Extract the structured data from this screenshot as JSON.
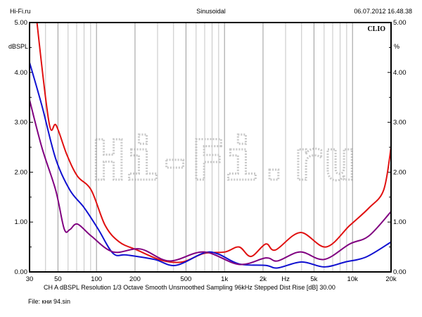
{
  "header": {
    "left": "Hi-Fi.ru",
    "center": "Sinusoidal",
    "right": "06.07.2012 16.48.38"
  },
  "brand": "CLIO",
  "watermark": "Hi-Fi.ru",
  "footer": {
    "settings": "CH A   dBSPL   Resolution 1/3 Octave   Smooth Unsmoothed   Sampling 96kHz   Stepped    Dist Rise [dB] 30.00",
    "file": "File: кни 94.sin"
  },
  "chart_data": {
    "type": "line",
    "title": "Sinusoidal",
    "xlabel": "Hz",
    "ylabel": "dBSPL",
    "ylabel_right": "%",
    "xscale": "log",
    "xlim": [
      30,
      20000
    ],
    "ylim": [
      0,
      5
    ],
    "x_ticks": [
      {
        "v": 30,
        "l": "30"
      },
      {
        "v": 50,
        "l": "50"
      },
      {
        "v": 100,
        "l": "100"
      },
      {
        "v": 200,
        "l": "200"
      },
      {
        "v": 500,
        "l": "500"
      },
      {
        "v": 1000,
        "l": "1k"
      },
      {
        "v": 2000,
        "l": "2k"
      },
      {
        "v": 3000,
        "l": "Hz"
      },
      {
        "v": 5000,
        "l": "5k"
      },
      {
        "v": 10000,
        "l": "10k"
      },
      {
        "v": 20000,
        "l": "20k"
      }
    ],
    "y_ticks": [
      "0.00",
      "1.00",
      "2.00",
      "3.00",
      "4.00",
      "5.00"
    ],
    "grid": true,
    "series": [
      {
        "name": "red",
        "color": "#e01010",
        "x": [
          33,
          34.3,
          42.7,
          48.4,
          58.7,
          71,
          91,
          117,
          151,
          207,
          325,
          470,
          690,
          1010,
          1300,
          1610,
          2100,
          2500,
          3900,
          6200,
          9500,
          13400,
          17500,
          20000
        ],
        "y": [
          5.6,
          5.0,
          2.98,
          2.94,
          2.35,
          1.92,
          1.64,
          0.93,
          0.6,
          0.44,
          0.23,
          0.2,
          0.37,
          0.4,
          0.5,
          0.31,
          0.56,
          0.44,
          0.79,
          0.5,
          0.93,
          1.28,
          1.64,
          2.5
        ]
      },
      {
        "name": "blue",
        "color": "#1010d0",
        "x": [
          30,
          37.5,
          48,
          62,
          80,
          103,
          135,
          172,
          284,
          415,
          690,
          890,
          1300,
          2100,
          2600,
          4000,
          6000,
          8800,
          12800,
          20000
        ],
        "y": [
          4.2,
          3.33,
          2.27,
          1.64,
          1.29,
          0.86,
          0.37,
          0.34,
          0.25,
          0.13,
          0.38,
          0.36,
          0.16,
          0.13,
          0.08,
          0.2,
          0.1,
          0.2,
          0.3,
          0.6
        ]
      },
      {
        "name": "purple",
        "color": "#800080",
        "x": [
          30,
          37.5,
          48,
          56,
          62,
          71,
          91,
          135,
          220,
          370,
          690,
          1300,
          2100,
          2600,
          3900,
          6000,
          9500,
          13400,
          20000
        ],
        "y": [
          3.45,
          2.49,
          1.64,
          0.86,
          0.85,
          0.96,
          0.72,
          0.4,
          0.46,
          0.22,
          0.4,
          0.15,
          0.28,
          0.22,
          0.4,
          0.25,
          0.56,
          0.72,
          1.21
        ]
      }
    ]
  }
}
